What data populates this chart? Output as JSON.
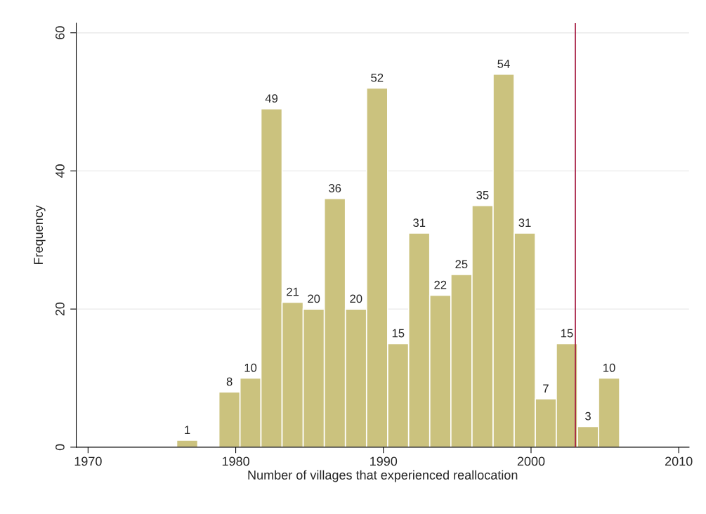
{
  "chart_data": {
    "type": "histogram",
    "xlabel": "Number of villages that experienced reallocation",
    "ylabel": "Frequency",
    "bins": [
      1976,
      1977.43,
      1978.86,
      1980.29,
      1981.71,
      1983.14,
      1984.57,
      1986,
      1987.43,
      1988.86,
      1990.29,
      1991.71,
      1993.14,
      1994.57,
      1996,
      1997.43,
      1998.86,
      2000.29,
      2001.71,
      2003.14,
      2004.57,
      2006
    ],
    "values": [
      1,
      0,
      8,
      10,
      49,
      21,
      20,
      36,
      20,
      52,
      15,
      31,
      22,
      25,
      35,
      54,
      31,
      7,
      15,
      3,
      10
    ],
    "value_labels": [
      "1",
      null,
      "8",
      "10",
      "49",
      "21",
      "20",
      "36",
      "20",
      "52",
      "15",
      "31",
      "22",
      "25",
      "35",
      "54",
      "31",
      "7",
      "15",
      "3",
      "10"
    ],
    "color": "#cbc27e",
    "xlim": [
      1969.2,
      2010.7
    ],
    "xticks": [
      1970,
      1980,
      1990,
      2000,
      2010
    ],
    "ylim": [
      0,
      61.4
    ],
    "yticks": [
      0,
      20,
      40,
      60
    ],
    "grid": "y",
    "ref_lines": [
      {
        "axis": "x",
        "value": 2003,
        "color": "#a3143c"
      }
    ]
  }
}
